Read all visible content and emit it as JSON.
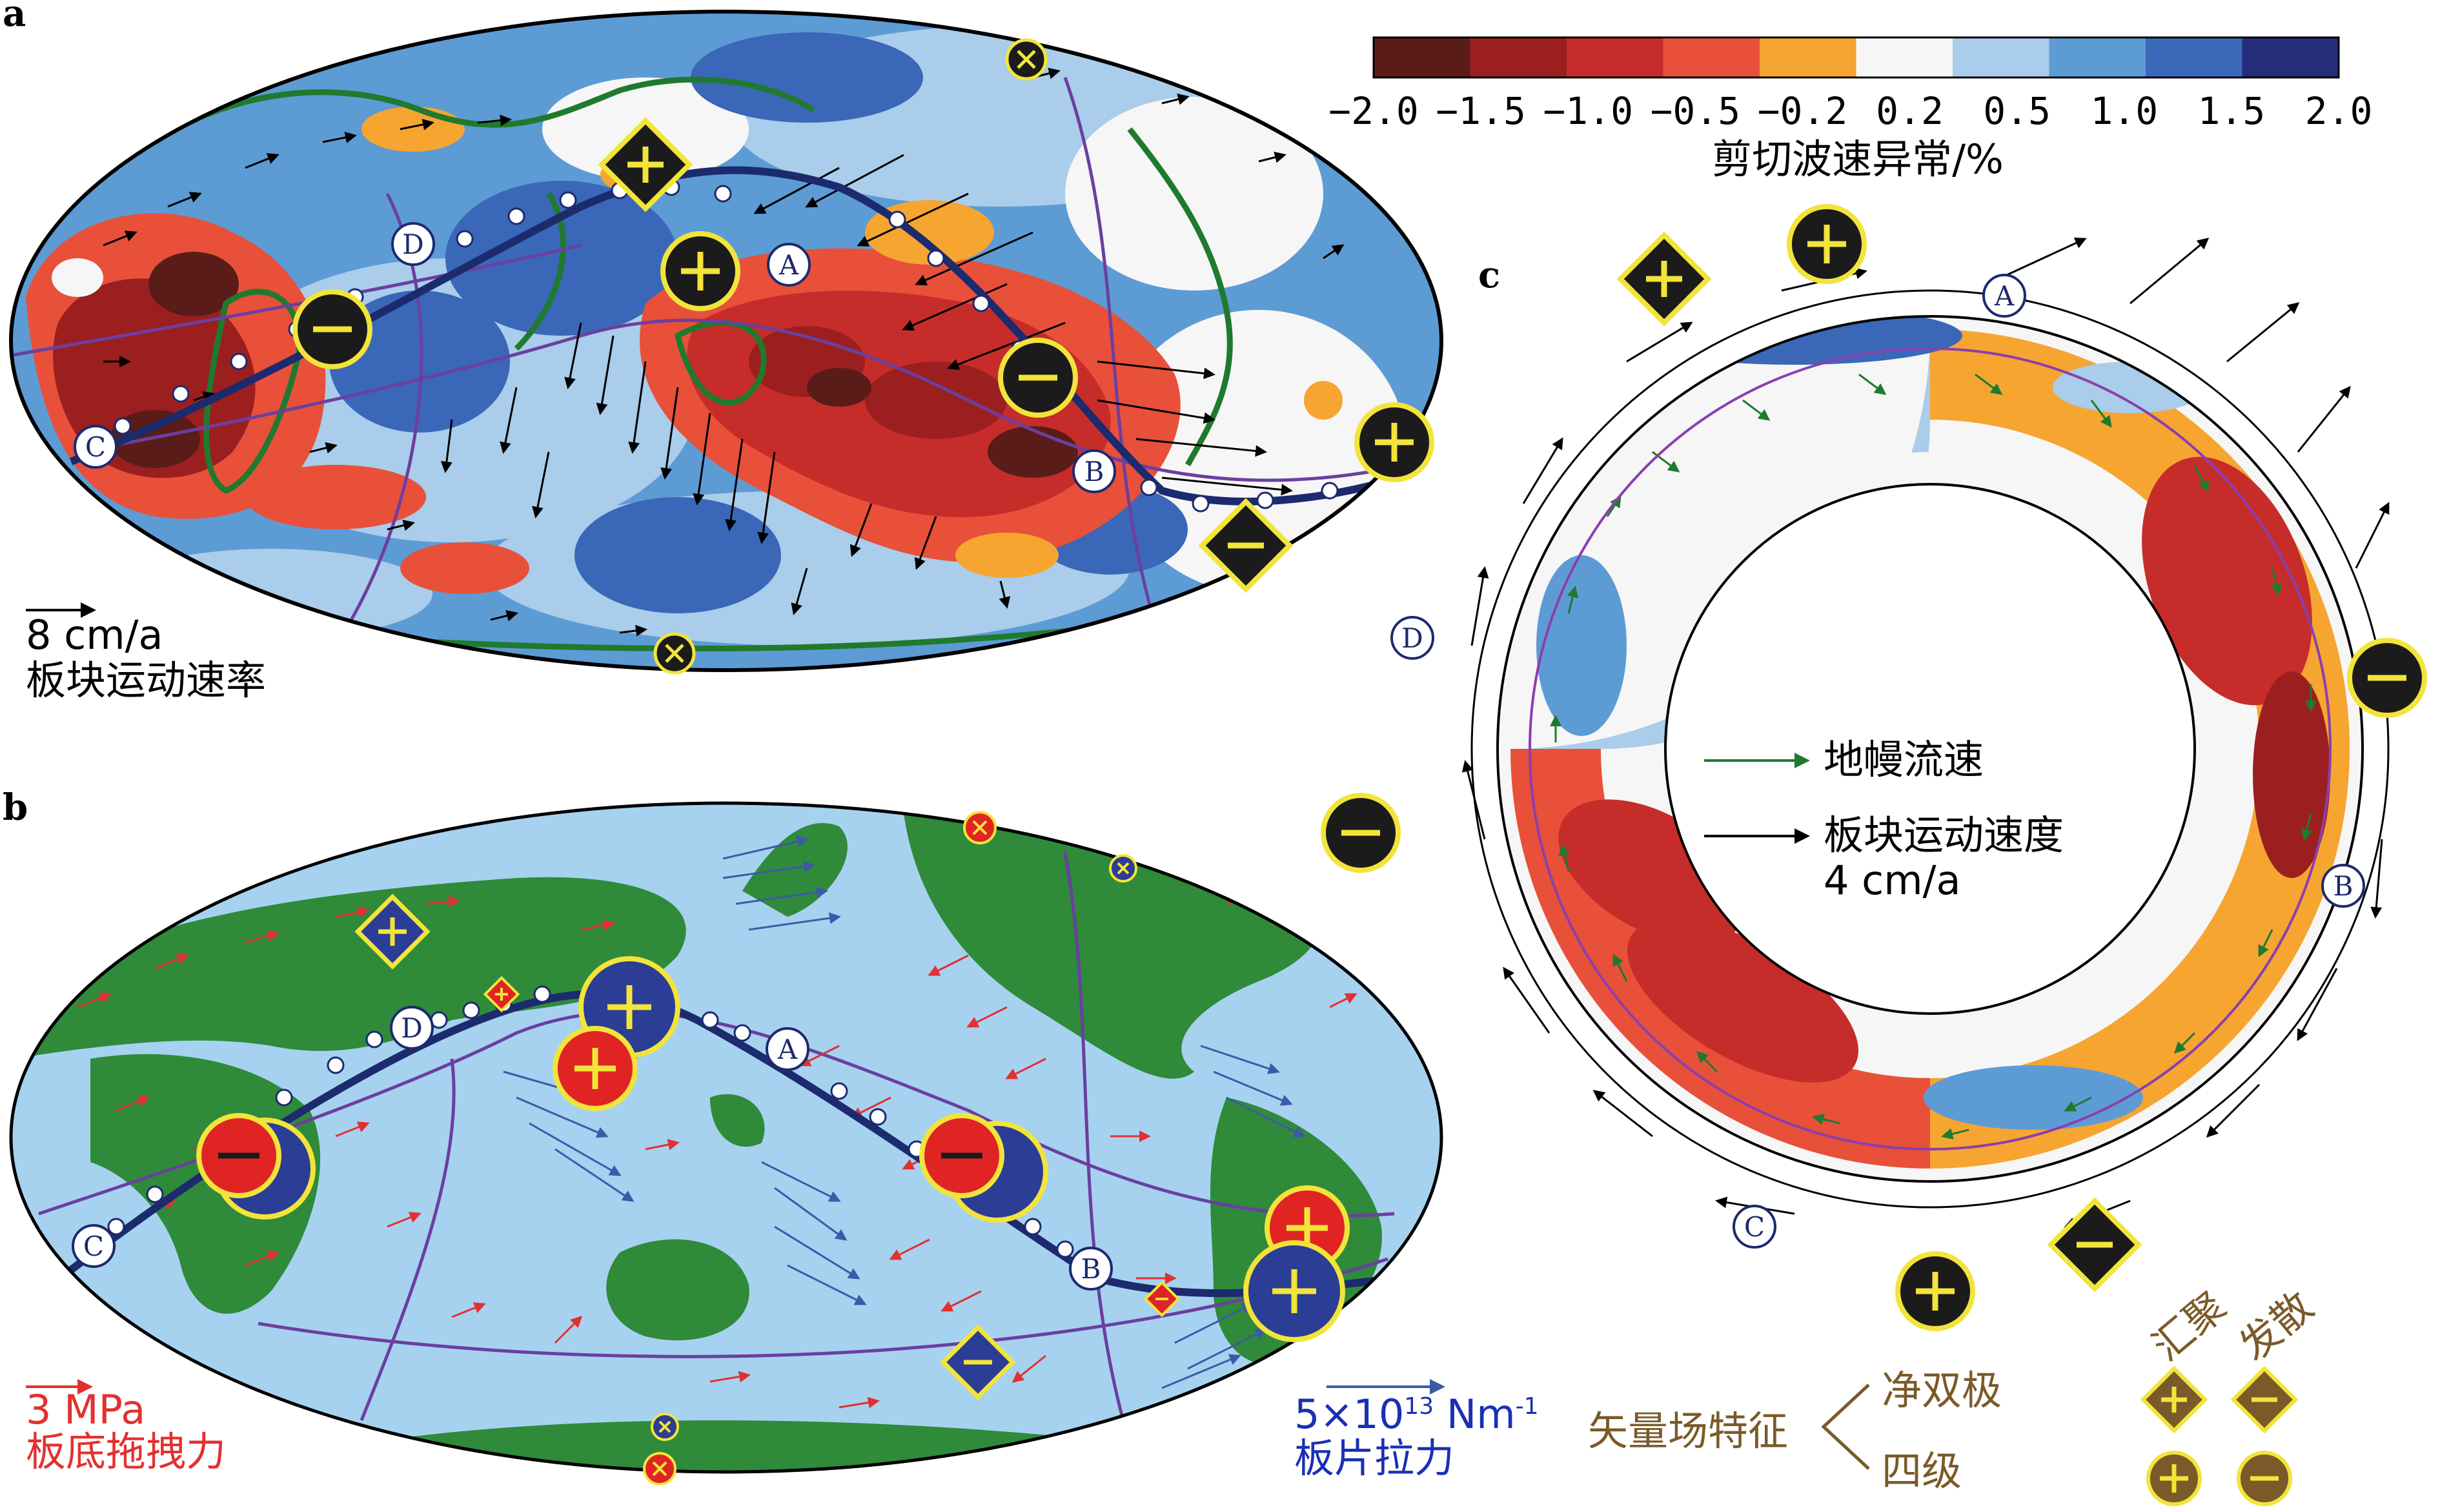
{
  "panels": {
    "a": "a",
    "b": "b",
    "c": "c"
  },
  "colorbar": {
    "title": "剪切波速异常/%",
    "ticks": [
      "−2.0",
      "−1.5",
      "−1.0",
      "−0.5",
      "−0.2",
      "0.2",
      "0.5",
      "1.0",
      "1.5",
      "2.0"
    ],
    "colors": [
      "#5a1c18",
      "#9b1f1f",
      "#c62d2a",
      "#e8503a",
      "#f6a531",
      "#f6f6f6",
      "#a9cdea",
      "#5d9bd5",
      "#3a67b8",
      "#232d7a"
    ]
  },
  "scale_a": {
    "value": "8 cm/a",
    "label": "板块运动速率"
  },
  "scale_b": {
    "drag_value": "3 MPa",
    "drag_label": "板底拖拽力",
    "slab_value": "5×10",
    "slab_exp": "13",
    "slab_unit": " Nm",
    "slab_unit_exp": "-1",
    "slab_label": "板片拉力"
  },
  "scale_c": {
    "mantle": "地幔流速",
    "plate": "板块运动速度",
    "plate_value": "4 cm/a"
  },
  "points": [
    "A",
    "B",
    "C",
    "D"
  ],
  "legend": {
    "title": "矢量场特征",
    "dipole": "净双极",
    "quadrupole": "四级",
    "converge": "汇聚",
    "diverge": "发散"
  },
  "colors": {
    "dark_symbol": "#1b1b1b",
    "yellow": "#f2e43a",
    "brown": "#7a5a28",
    "red_symbol": "#e02424",
    "blue_symbol": "#2b3d94",
    "ocean": "#a6d2f0",
    "land": "#2f8a3a",
    "green_arrow": "#1f7a2e",
    "red_arrow": "#e23030",
    "slab_blue": "#3b5aa8"
  }
}
